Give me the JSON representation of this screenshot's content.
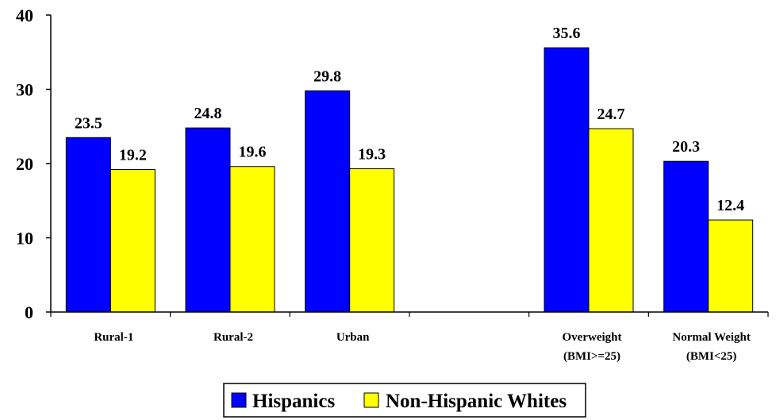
{
  "chart_data": {
    "type": "bar",
    "title": "",
    "xlabel": "",
    "ylabel": "",
    "ylim": [
      0,
      40
    ],
    "yticks": [
      0,
      10,
      20,
      30,
      40
    ],
    "grid": false,
    "legend_position": "bottom",
    "categories": [
      {
        "lines": [
          "Rural-1"
        ]
      },
      {
        "lines": [
          "Rural-2"
        ]
      },
      {
        "lines": [
          "Urban"
        ]
      },
      {
        "lines": []
      },
      {
        "lines": [
          "Overweight",
          "(BMI>=25)"
        ]
      },
      {
        "lines": [
          "Normal Weight",
          "(BMI<25)"
        ]
      }
    ],
    "series": [
      {
        "name": "Hispanics",
        "color": "#0000ff",
        "values": [
          23.5,
          24.8,
          29.8,
          null,
          35.6,
          20.3
        ]
      },
      {
        "name": "Non-Hispanic Whites",
        "color": "#ffff00",
        "values": [
          19.2,
          19.6,
          19.3,
          null,
          24.7,
          12.4
        ]
      }
    ]
  }
}
